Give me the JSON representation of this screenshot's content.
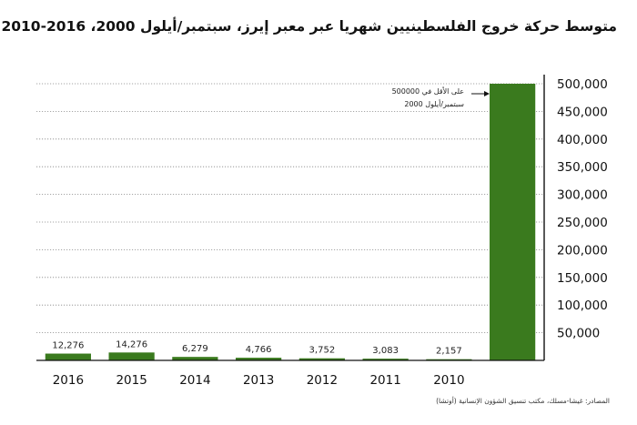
{
  "chart_data": {
    "type": "bar",
    "title": "متوسط حركة خروج الفلسطينيين شهريا عبر معبر إيرز، سبتمبر/أيلول 2000، 2016-2010",
    "categories": [
      "2016",
      "2015",
      "2014",
      "2013",
      "2012",
      "2011",
      "2010",
      ""
    ],
    "values": [
      12276,
      14276,
      6279,
      4766,
      3752,
      3083,
      2157,
      500000
    ],
    "data_labels": [
      "12,276",
      "14,276",
      "6,279",
      "4,766",
      "3,752",
      "3,083",
      "2,157",
      ""
    ],
    "ylim": [
      0,
      500000
    ],
    "yticks": [
      {
        "value": 50000,
        "label": "50,000"
      },
      {
        "value": 100000,
        "label": "100,000"
      },
      {
        "value": 150000,
        "label": "150,000"
      },
      {
        "value": 200000,
        "label": "200,000"
      },
      {
        "value": 250000,
        "label": "250,000"
      },
      {
        "value": 300000,
        "label": "300,000"
      },
      {
        "value": 350000,
        "label": "350,000"
      },
      {
        "value": 400000,
        "label": "400,000"
      },
      {
        "value": 450000,
        "label": "450,000"
      },
      {
        "value": 500000,
        "label": "500,000"
      }
    ],
    "xlabel": "",
    "ylabel": "",
    "grid": true,
    "axis_side": "right",
    "annotation": {
      "line1": "500000 على الأقل في",
      "line2": "سبتمبر/أيلول 2000"
    },
    "colors": {
      "bar": "#3a7a1e",
      "grid": "#888888",
      "axis": "#111111"
    }
  },
  "source": "المصادر: غيشا-مسلك، مكتب تنسيق الشؤون الإنسانية (أوتشا)"
}
